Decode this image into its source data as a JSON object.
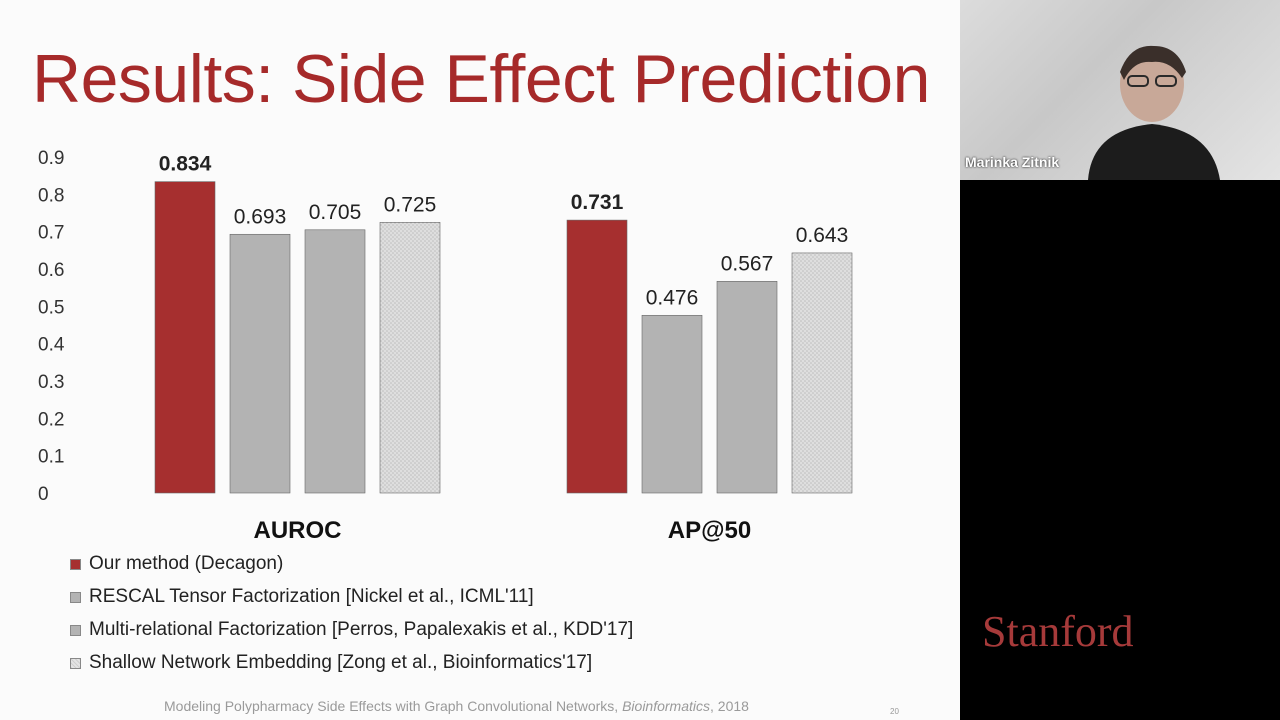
{
  "slide": {
    "title": "Results: Side Effect Prediction",
    "footer_text": "Modeling Polypharmacy Side Effects with Graph Convolutional Networks, ",
    "footer_journal": "Bioinformatics",
    "footer_year": ", 2018",
    "page_number": "20"
  },
  "webcam": {
    "speaker_name": "Marinka Zitnik"
  },
  "logo": {
    "text": "Stanford"
  },
  "colors": {
    "decagon": "#a62f2f",
    "baseline": "#b3b3b3",
    "shallow": "#d4d4d4",
    "title": "#a62a2a"
  },
  "chart_data": {
    "type": "bar",
    "categories": [
      "AUROC",
      "AP@50"
    ],
    "ylim": [
      0,
      0.9
    ],
    "yticks": [
      "0",
      "0.1",
      "0.2",
      "0.3",
      "0.4",
      "0.5",
      "0.6",
      "0.7",
      "0.8",
      "0.9"
    ],
    "series": [
      {
        "name": "Our method (Decagon)",
        "values": [
          0.834,
          0.731
        ],
        "labels": [
          "0.834",
          "0.731"
        ],
        "color": "#a62f2f",
        "bold": true
      },
      {
        "name": "RESCAL Tensor Factorization [Nickel et al., ICML'11]",
        "values": [
          0.693,
          0.476
        ],
        "labels": [
          "0.693",
          "0.476"
        ],
        "color": "#b3b3b3"
      },
      {
        "name": "Multi-relational Factorization [Perros, Papalexakis et al., KDD'17]",
        "values": [
          0.705,
          0.567
        ],
        "labels": [
          "0.705",
          "0.567"
        ],
        "color": "#b3b3b3"
      },
      {
        "name": "Shallow Network Embedding [Zong et al., Bioinformatics'17]",
        "values": [
          0.725,
          0.643
        ],
        "labels": [
          "0.725",
          "0.643"
        ],
        "color": "#d4d4d4",
        "pattern": "dotted"
      }
    ],
    "grid": false,
    "legend_position": "bottom-left"
  }
}
